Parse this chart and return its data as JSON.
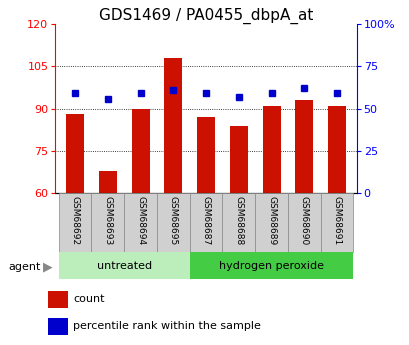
{
  "title": "GDS1469 / PA0455_dbpA_at",
  "categories": [
    "GSM68692",
    "GSM68693",
    "GSM68694",
    "GSM68695",
    "GSM68687",
    "GSM68688",
    "GSM68689",
    "GSM68690",
    "GSM68691"
  ],
  "bar_values": [
    88,
    68,
    90,
    108,
    87,
    84,
    91,
    93,
    91
  ],
  "percentile_values": [
    59,
    56,
    59,
    61,
    59,
    57,
    59,
    62,
    59
  ],
  "bar_color": "#CC1100",
  "dot_color": "#0000CC",
  "ylim_left": [
    60,
    120
  ],
  "ylim_right": [
    0,
    100
  ],
  "yticks_left": [
    60,
    75,
    90,
    105,
    120
  ],
  "yticks_right": [
    0,
    25,
    50,
    75,
    100
  ],
  "yticklabels_right": [
    "0",
    "25",
    "50",
    "75",
    "100%"
  ],
  "baseline": 60,
  "untreated_indices": [
    0,
    1,
    2,
    3
  ],
  "peroxide_indices": [
    4,
    5,
    6,
    7,
    8
  ],
  "untreated_label": "untreated",
  "peroxide_label": "hydrogen peroxide",
  "agent_label": "agent",
  "legend_count": "count",
  "legend_percentile": "percentile rank within the sample",
  "bg_color_tick": "#D0D0D0",
  "bg_untreated": "#BBEEBB",
  "bg_peroxide": "#44CC44",
  "title_fontsize": 11,
  "tick_fontsize": 8,
  "bar_width": 0.55
}
